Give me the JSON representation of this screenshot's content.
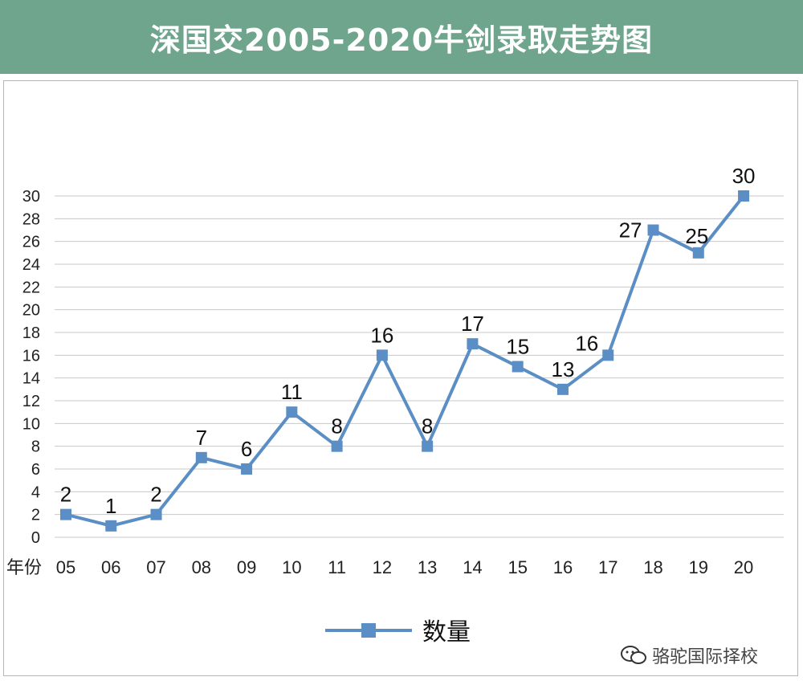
{
  "header": {
    "title": "深国交2005-2020牛剑录取走势图"
  },
  "chart_data": {
    "type": "line",
    "title": "深国交2005-2020牛剑录取走势图",
    "xlabel": "年份",
    "ylabel": "",
    "categories": [
      "05",
      "06",
      "07",
      "08",
      "09",
      "10",
      "11",
      "12",
      "13",
      "14",
      "15",
      "16",
      "17",
      "18",
      "19",
      "20"
    ],
    "series": [
      {
        "name": "数量",
        "values": [
          2,
          1,
          2,
          7,
          6,
          11,
          8,
          16,
          8,
          17,
          15,
          13,
          16,
          27,
          25,
          30
        ]
      }
    ],
    "ylim": [
      0,
      30
    ],
    "yticks": [
      0,
      2,
      4,
      6,
      8,
      10,
      12,
      14,
      16,
      18,
      20,
      22,
      24,
      26,
      28,
      30
    ],
    "grid": true,
    "legend_position": "bottom",
    "line_color": "#5b8ec4",
    "marker": "square"
  },
  "watermark": {
    "icon": "wechat-icon",
    "text": "骆驼国际择校"
  }
}
